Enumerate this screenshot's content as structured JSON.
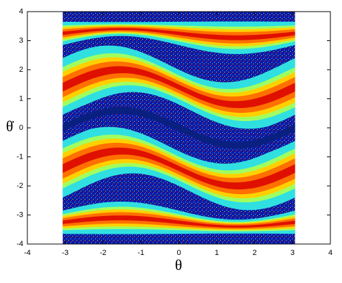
{
  "chart_data": {
    "type": "heatmap",
    "x_label": "θ",
    "y_label": "θ̇",
    "xlim": [
      -4,
      4
    ],
    "ylim": [
      -4,
      4
    ],
    "xticks": [
      -4,
      -3,
      -2,
      -1,
      0,
      1,
      2,
      3,
      4
    ],
    "yticks": [
      -4,
      -3,
      -2,
      -1,
      0,
      1,
      2,
      3,
      4
    ]
  }
}
